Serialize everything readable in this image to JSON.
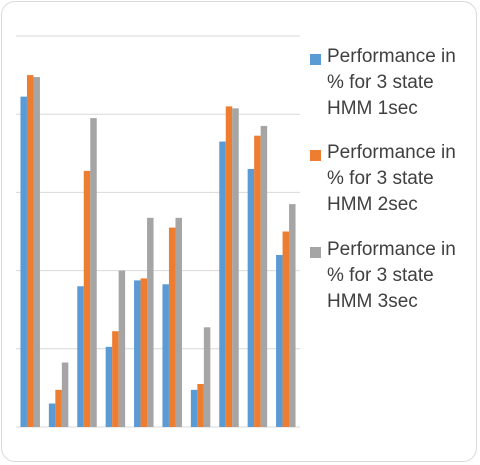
{
  "chart_data": {
    "type": "bar",
    "categories": [
      "",
      "",
      "",
      "",
      "",
      "",
      "",
      "",
      "",
      ""
    ],
    "series": [
      {
        "name": "Performance in % for 3 state HMM 1sec",
        "color": "#5b9bd5",
        "values": [
          84.5,
          6,
          36,
          20.5,
          37.5,
          36.5,
          9.5,
          73,
          66,
          44
        ]
      },
      {
        "name": "Performance in % for 3 state HMM 2sec",
        "color": "#ed7d31",
        "values": [
          90,
          9.5,
          65.5,
          24.5,
          38,
          51,
          11,
          82,
          74.5,
          50
        ]
      },
      {
        "name": "Performance in % for 3 state HMM 3sec",
        "color": "#a5a5a5",
        "values": [
          89.5,
          16.5,
          79,
          40,
          53.5,
          53.5,
          25.5,
          81.5,
          77,
          57
        ]
      }
    ],
    "ylim": [
      0,
      100
    ],
    "y_gridlines": [
      0,
      20,
      40,
      60,
      80,
      100
    ],
    "grid": true,
    "legend_position": "right",
    "xlabel": "",
    "ylabel": "",
    "title": ""
  },
  "colors": {
    "gridline": "#d9d9d9",
    "axis": "#d9d9d9",
    "border": "#d9d9d9"
  }
}
